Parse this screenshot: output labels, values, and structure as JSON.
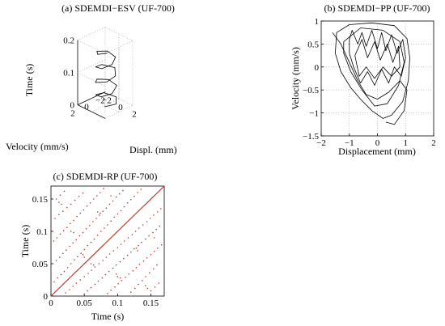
{
  "chart_data": [
    {
      "id": "a",
      "type": "line",
      "title": "(a) SDEMDI−ESV (UF-700)",
      "zlabel": "Time (s)",
      "xlabel": "Displ. (mm)",
      "ylabel": "Velocity (mm/s)",
      "zlim": [
        0,
        0.2
      ],
      "xlim": [
        -2,
        2
      ],
      "ylim": [
        -2,
        2
      ],
      "z_ticks": [
        "0",
        "0.1",
        "0.2"
      ],
      "x_ticks": [
        "−2",
        "0",
        "2"
      ],
      "y_ticks": [
        "2",
        "0",
        "−2"
      ],
      "grid": true,
      "series": [
        {
          "color": "#000000",
          "points": [
            [
              0.2,
              0.3,
              0.0
            ],
            [
              1.0,
              -0.6,
              0.008
            ],
            [
              0.3,
              -1.3,
              0.016
            ],
            [
              -0.8,
              -0.6,
              0.024
            ],
            [
              -0.7,
              0.7,
              0.032
            ],
            [
              0.4,
              1.0,
              0.04
            ],
            [
              1.1,
              0.1,
              0.048
            ],
            [
              0.6,
              -1.1,
              0.056
            ],
            [
              -0.5,
              -1.0,
              0.064
            ],
            [
              -1.0,
              0.2,
              0.072
            ],
            [
              -0.2,
              1.2,
              0.08
            ],
            [
              0.9,
              0.7,
              0.088
            ],
            [
              1.0,
              -0.5,
              0.096
            ],
            [
              0.1,
              -1.3,
              0.104
            ],
            [
              -0.9,
              -0.4,
              0.112
            ],
            [
              -0.6,
              0.8,
              0.12
            ],
            [
              0.5,
              1.0,
              0.128
            ],
            [
              1.0,
              0.0,
              0.136
            ],
            [
              0.5,
              -1.0,
              0.144
            ],
            [
              -0.6,
              -0.9,
              0.152
            ],
            [
              -0.9,
              0.3,
              0.16
            ],
            [
              0.0,
              1.1,
              0.168
            ],
            [
              0.8,
              0.5,
              0.174
            ]
          ]
        }
      ]
    },
    {
      "id": "b",
      "type": "line",
      "title": "(b) SDEMDI−PP (UF-700)",
      "xlabel": "Displacement (mm)",
      "ylabel": "Velocity (mm/s)",
      "xlim": [
        -2,
        2
      ],
      "ylim": [
        -1.5,
        1
      ],
      "x_ticks": [
        -2,
        -1,
        0,
        1,
        2
      ],
      "y_ticks": [
        -1.5,
        -1,
        -0.5,
        0,
        0.5,
        1
      ],
      "x_tick_labels": [
        "−2",
        "−1",
        "0",
        "1",
        "2"
      ],
      "y_tick_labels": [
        "−1.5",
        "−1",
        "−0.5",
        "0",
        "0.5",
        "1"
      ],
      "grid": true,
      "series": [
        {
          "color": "#000000",
          "points": [
            [
              -1.5,
              0.3
            ],
            [
              -1.45,
              0.75
            ],
            [
              -1.0,
              0.92
            ],
            [
              -0.2,
              0.96
            ],
            [
              0.6,
              0.9
            ],
            [
              1.05,
              0.62
            ],
            [
              1.15,
              0.2
            ],
            [
              1.1,
              -0.3
            ],
            [
              0.9,
              -0.75
            ],
            [
              0.5,
              -1.05
            ],
            [
              0.2,
              -1.12
            ],
            [
              -0.2,
              -0.95
            ],
            [
              -0.6,
              -0.7
            ],
            [
              -0.95,
              -0.45
            ],
            [
              -1.3,
              -0.1
            ],
            [
              -1.5,
              0.3
            ]
          ]
        },
        {
          "color": "#000000",
          "points": [
            [
              -1.2,
              0.55
            ],
            [
              -0.6,
              0.85
            ],
            [
              0.2,
              0.8
            ],
            [
              0.8,
              0.55
            ],
            [
              0.95,
              0.1
            ],
            [
              0.75,
              -0.4
            ],
            [
              0.35,
              -0.8
            ],
            [
              -0.1,
              -0.85
            ],
            [
              -0.55,
              -0.5
            ],
            [
              -0.95,
              -0.1
            ],
            [
              -1.2,
              0.3
            ],
            [
              -1.2,
              0.55
            ]
          ]
        },
        {
          "color": "#000000",
          "points": [
            [
              -1.0,
              0.6
            ],
            [
              -0.9,
              0.8
            ],
            [
              -0.7,
              0.5
            ],
            [
              -0.55,
              0.75
            ],
            [
              -0.4,
              0.45
            ],
            [
              -0.2,
              0.8
            ],
            [
              0.0,
              0.4
            ],
            [
              0.15,
              0.75
            ],
            [
              0.3,
              0.35
            ],
            [
              0.5,
              0.7
            ],
            [
              0.7,
              0.3
            ],
            [
              0.9,
              0.6
            ],
            [
              1.0,
              0.2
            ],
            [
              0.85,
              -0.2
            ],
            [
              0.6,
              0.0
            ],
            [
              0.4,
              -0.35
            ],
            [
              0.15,
              -0.05
            ],
            [
              -0.1,
              -0.4
            ],
            [
              -0.35,
              -0.1
            ],
            [
              -0.6,
              -0.35
            ],
            [
              -0.85,
              0.0
            ],
            [
              -1.0,
              0.3
            ],
            [
              -1.0,
              0.6
            ]
          ]
        },
        {
          "color": "#000000",
          "points": [
            [
              -1.6,
              0.75
            ],
            [
              -1.3,
              0.5
            ],
            [
              -1.0,
              0.1
            ],
            [
              -0.7,
              -0.3
            ],
            [
              -0.4,
              -0.6
            ],
            [
              0.0,
              -0.7
            ],
            [
              0.4,
              -0.55
            ],
            [
              0.8,
              -0.3
            ],
            [
              1.05,
              -0.5
            ],
            [
              0.95,
              -0.95
            ],
            [
              0.6,
              -1.25
            ],
            [
              0.3,
              -1.2
            ]
          ]
        },
        {
          "color": "#000000",
          "points": [
            [
              -0.8,
              0.25
            ],
            [
              -0.55,
              0.6
            ],
            [
              -0.35,
              0.2
            ],
            [
              -0.1,
              0.55
            ],
            [
              0.1,
              0.15
            ],
            [
              0.35,
              0.5
            ],
            [
              0.55,
              0.1
            ],
            [
              0.75,
              0.45
            ],
            [
              0.8,
              0.0
            ],
            [
              0.5,
              -0.2
            ],
            [
              0.2,
              0.0
            ],
            [
              -0.1,
              -0.25
            ],
            [
              -0.4,
              0.0
            ],
            [
              -0.65,
              -0.2
            ],
            [
              -0.8,
              0.25
            ]
          ]
        }
      ]
    },
    {
      "id": "c",
      "type": "scatter",
      "title": "(c) SDEMDI-RP (UF-700)",
      "xlabel": "Time  (s)",
      "ylabel": "Time (s)",
      "xlim": [
        0,
        0.17
      ],
      "ylim": [
        0,
        0.17
      ],
      "x_ticks": [
        0,
        0.05,
        0.1,
        0.15
      ],
      "y_ticks": [
        0,
        0.05,
        0.1,
        0.15
      ],
      "x_tick_labels": [
        "0",
        "0.05",
        "0.1",
        "0.15"
      ],
      "y_tick_labels": [
        "0",
        "0.05",
        "0.1",
        "0.15"
      ],
      "diagonal": [
        [
          0,
          0
        ],
        [
          0.17,
          0.17
        ]
      ],
      "diagonal_color": "#c0392b",
      "point_color": "#c0392b",
      "points": [
        [
          0.005,
          0.022
        ],
        [
          0.01,
          0.028
        ],
        [
          0.015,
          0.033
        ],
        [
          0.02,
          0.038
        ],
        [
          0.025,
          0.044
        ],
        [
          0.03,
          0.05
        ],
        [
          0.035,
          0.056
        ],
        [
          0.04,
          0.061
        ],
        [
          0.045,
          0.066
        ],
        [
          0.05,
          0.072
        ],
        [
          0.055,
          0.078
        ],
        [
          0.06,
          0.083
        ],
        [
          0.065,
          0.088
        ],
        [
          0.07,
          0.094
        ],
        [
          0.075,
          0.1
        ],
        [
          0.08,
          0.105
        ],
        [
          0.085,
          0.11
        ],
        [
          0.09,
          0.116
        ],
        [
          0.095,
          0.122
        ],
        [
          0.1,
          0.127
        ],
        [
          0.105,
          0.132
        ],
        [
          0.11,
          0.138
        ],
        [
          0.115,
          0.144
        ],
        [
          0.12,
          0.149
        ],
        [
          0.125,
          0.154
        ],
        [
          0.13,
          0.16
        ],
        [
          0.135,
          0.165
        ],
        [
          0.003,
          0.05
        ],
        [
          0.008,
          0.055
        ],
        [
          0.013,
          0.06
        ],
        [
          0.018,
          0.066
        ],
        [
          0.023,
          0.071
        ],
        [
          0.028,
          0.077
        ],
        [
          0.033,
          0.082
        ],
        [
          0.038,
          0.087
        ],
        [
          0.043,
          0.093
        ],
        [
          0.048,
          0.098
        ],
        [
          0.053,
          0.104
        ],
        [
          0.058,
          0.109
        ],
        [
          0.063,
          0.115
        ],
        [
          0.068,
          0.12
        ],
        [
          0.073,
          0.125
        ],
        [
          0.078,
          0.131
        ],
        [
          0.083,
          0.136
        ],
        [
          0.088,
          0.142
        ],
        [
          0.093,
          0.147
        ],
        [
          0.098,
          0.153
        ],
        [
          0.103,
          0.158
        ],
        [
          0.108,
          0.163
        ],
        [
          0.004,
          0.085
        ],
        [
          0.009,
          0.09
        ],
        [
          0.014,
          0.096
        ],
        [
          0.019,
          0.101
        ],
        [
          0.024,
          0.106
        ],
        [
          0.029,
          0.112
        ],
        [
          0.034,
          0.117
        ],
        [
          0.039,
          0.123
        ],
        [
          0.044,
          0.128
        ],
        [
          0.049,
          0.133
        ],
        [
          0.054,
          0.139
        ],
        [
          0.059,
          0.144
        ],
        [
          0.064,
          0.15
        ],
        [
          0.069,
          0.155
        ],
        [
          0.074,
          0.16
        ],
        [
          0.079,
          0.166
        ],
        [
          0.006,
          0.12
        ],
        [
          0.012,
          0.126
        ],
        [
          0.018,
          0.131
        ],
        [
          0.024,
          0.137
        ],
        [
          0.03,
          0.142
        ],
        [
          0.036,
          0.148
        ],
        [
          0.042,
          0.154
        ],
        [
          0.048,
          0.159
        ],
        [
          0.008,
          0.15
        ],
        [
          0.014,
          0.156
        ],
        [
          0.02,
          0.162
        ],
        [
          0.022,
          0.005
        ],
        [
          0.028,
          0.01
        ],
        [
          0.033,
          0.015
        ],
        [
          0.038,
          0.02
        ],
        [
          0.044,
          0.025
        ],
        [
          0.05,
          0.03
        ],
        [
          0.056,
          0.035
        ],
        [
          0.061,
          0.04
        ],
        [
          0.066,
          0.045
        ],
        [
          0.072,
          0.05
        ],
        [
          0.078,
          0.055
        ],
        [
          0.083,
          0.06
        ],
        [
          0.088,
          0.065
        ],
        [
          0.094,
          0.07
        ],
        [
          0.1,
          0.075
        ],
        [
          0.105,
          0.08
        ],
        [
          0.11,
          0.085
        ],
        [
          0.116,
          0.09
        ],
        [
          0.122,
          0.095
        ],
        [
          0.127,
          0.1
        ],
        [
          0.132,
          0.105
        ],
        [
          0.138,
          0.11
        ],
        [
          0.144,
          0.115
        ],
        [
          0.149,
          0.12
        ],
        [
          0.154,
          0.125
        ],
        [
          0.16,
          0.13
        ],
        [
          0.165,
          0.135
        ],
        [
          0.05,
          0.003
        ],
        [
          0.055,
          0.008
        ],
        [
          0.06,
          0.013
        ],
        [
          0.066,
          0.018
        ],
        [
          0.071,
          0.023
        ],
        [
          0.077,
          0.028
        ],
        [
          0.082,
          0.033
        ],
        [
          0.087,
          0.038
        ],
        [
          0.093,
          0.043
        ],
        [
          0.098,
          0.048
        ],
        [
          0.104,
          0.053
        ],
        [
          0.109,
          0.058
        ],
        [
          0.115,
          0.063
        ],
        [
          0.12,
          0.068
        ],
        [
          0.125,
          0.073
        ],
        [
          0.131,
          0.078
        ],
        [
          0.136,
          0.083
        ],
        [
          0.142,
          0.088
        ],
        [
          0.147,
          0.093
        ],
        [
          0.153,
          0.098
        ],
        [
          0.158,
          0.103
        ],
        [
          0.163,
          0.108
        ],
        [
          0.085,
          0.004
        ],
        [
          0.09,
          0.009
        ],
        [
          0.096,
          0.014
        ],
        [
          0.101,
          0.019
        ],
        [
          0.106,
          0.024
        ],
        [
          0.112,
          0.029
        ],
        [
          0.117,
          0.034
        ],
        [
          0.123,
          0.039
        ],
        [
          0.128,
          0.044
        ],
        [
          0.133,
          0.049
        ],
        [
          0.139,
          0.054
        ],
        [
          0.144,
          0.059
        ],
        [
          0.15,
          0.064
        ],
        [
          0.155,
          0.069
        ],
        [
          0.16,
          0.074
        ],
        [
          0.166,
          0.079
        ],
        [
          0.12,
          0.006
        ],
        [
          0.126,
          0.012
        ],
        [
          0.131,
          0.018
        ],
        [
          0.137,
          0.024
        ],
        [
          0.142,
          0.03
        ],
        [
          0.148,
          0.036
        ],
        [
          0.154,
          0.042
        ],
        [
          0.159,
          0.048
        ],
        [
          0.15,
          0.008
        ],
        [
          0.156,
          0.014
        ],
        [
          0.162,
          0.02
        ],
        [
          0.012,
          0.145
        ],
        [
          0.016,
          0.142
        ],
        [
          0.03,
          0.1
        ],
        [
          0.034,
          0.098
        ],
        [
          0.06,
          0.05
        ],
        [
          0.064,
          0.048
        ],
        [
          0.1,
          0.03
        ],
        [
          0.104,
          0.028
        ],
        [
          0.145,
          0.012
        ],
        [
          0.142,
          0.016
        ],
        [
          0.1,
          0.03
        ],
        [
          0.05,
          0.06
        ],
        [
          0.098,
          0.034
        ],
        [
          0.048,
          0.064
        ],
        [
          0.07,
          0.13
        ],
        [
          0.074,
          0.128
        ],
        [
          0.13,
          0.07
        ],
        [
          0.128,
          0.074
        ],
        [
          0.09,
          0.155
        ],
        [
          0.155,
          0.09
        ]
      ]
    }
  ]
}
